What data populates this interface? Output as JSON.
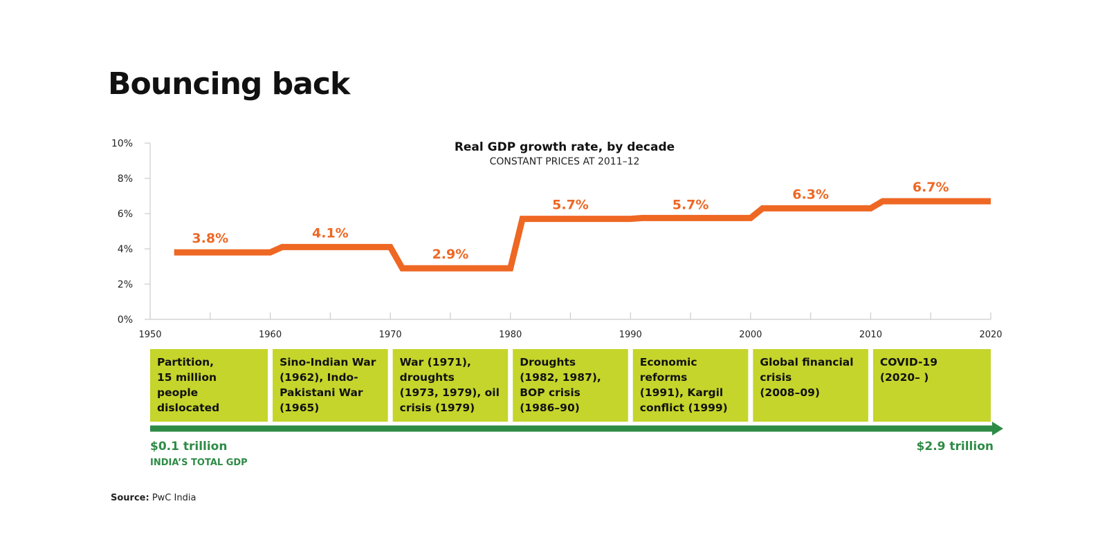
{
  "page": {
    "title": "Bouncing back",
    "source_label": "Source:",
    "source_value": "PwC India"
  },
  "colors": {
    "line": "#ee6723",
    "event_box": "#c5d52b",
    "gdp_arrow": "#2e8b46",
    "axis": "#cccccc",
    "text": "#111111"
  },
  "chart_data": {
    "type": "line",
    "title": "Real GDP growth rate, by decade",
    "subtitle": "CONSTANT PRICES AT 2011–12",
    "xlabel": "",
    "ylabel": "",
    "xlim": [
      1950,
      2020
    ],
    "ylim": [
      0,
      10
    ],
    "y_ticks": [
      0,
      2,
      4,
      6,
      8,
      10
    ],
    "y_tick_labels": [
      "0%",
      "2%",
      "4%",
      "6%",
      "8%",
      "10%"
    ],
    "x_ticks": [
      1950,
      1960,
      1970,
      1980,
      1990,
      2000,
      2010,
      2020
    ],
    "x_tick_labels": [
      "1950",
      "1960",
      "1970",
      "1980",
      "1990",
      "2000",
      "2010",
      "2020"
    ],
    "grid": false,
    "series": [
      {
        "name": "Real GDP growth rate",
        "x": [
          1952,
          1960,
          1961,
          1970,
          1971,
          1980,
          1981,
          1990,
          1991,
          2000,
          2001,
          2010,
          2011,
          2020
        ],
        "values": [
          3.8,
          3.8,
          4.1,
          4.1,
          2.9,
          2.9,
          5.7,
          5.7,
          5.75,
          5.75,
          6.3,
          6.3,
          6.7,
          6.7
        ]
      }
    ],
    "decade_labels": [
      {
        "decade_mid": 1955,
        "value": 3.8,
        "label": "3.8%"
      },
      {
        "decade_mid": 1965,
        "value": 4.1,
        "label": "4.1%"
      },
      {
        "decade_mid": 1975,
        "value": 2.9,
        "label": "2.9%"
      },
      {
        "decade_mid": 1985,
        "value": 5.7,
        "label": "5.7%"
      },
      {
        "decade_mid": 1995,
        "value": 5.7,
        "label": "5.7%"
      },
      {
        "decade_mid": 2005,
        "value": 6.3,
        "label": "6.3%"
      },
      {
        "decade_mid": 2015,
        "value": 6.7,
        "label": "6.7%"
      }
    ],
    "events": [
      {
        "start": 1950,
        "end": 1960,
        "lines": [
          "Partition,",
          "15 million",
          "people",
          "dislocated"
        ]
      },
      {
        "start": 1960,
        "end": 1970,
        "lines": [
          "Sino-Indian War",
          "(1962), Indo-",
          "Pakistani War",
          "(1965)"
        ]
      },
      {
        "start": 1970,
        "end": 1980,
        "lines": [
          "War (1971),",
          "droughts",
          "(1973, 1979), oil",
          "crisis (1979)"
        ]
      },
      {
        "start": 1980,
        "end": 1990,
        "lines": [
          "Droughts",
          "(1982, 1987),",
          "BOP crisis",
          "(1986–90)"
        ]
      },
      {
        "start": 1990,
        "end": 2000,
        "lines": [
          "Economic",
          "reforms",
          "(1991), Kargil",
          "conflict (1999)"
        ]
      },
      {
        "start": 2000,
        "end": 2010,
        "lines": [
          "Global financial",
          "crisis",
          "(2008–09)"
        ]
      },
      {
        "start": 2010,
        "end": 2020,
        "lines": [
          "COVID-19",
          "(2020–    )"
        ]
      }
    ],
    "gdp": {
      "start_value": "$0.1 trillion",
      "start_caption": "INDIA’S TOTAL GDP",
      "end_value": "$2.9 trillion"
    }
  }
}
